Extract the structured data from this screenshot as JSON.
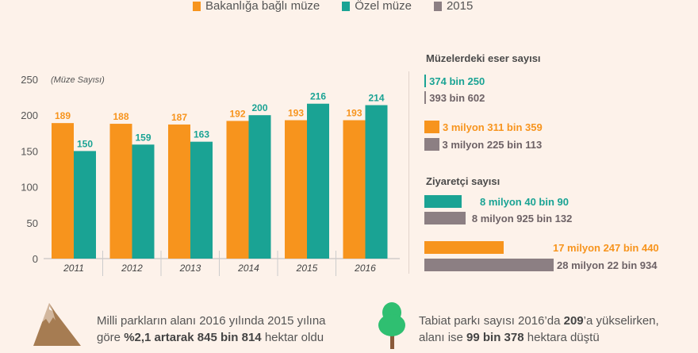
{
  "legend": [
    {
      "label": "Bakanlığa bağlı müze",
      "color": "#f7941d"
    },
    {
      "label": "Özel müze",
      "color": "#1aa394"
    },
    {
      "label": "2015",
      "color": "#8c7f83"
    }
  ],
  "chart_data": {
    "type": "bar",
    "ylabel": "(Müze Sayısı)",
    "categories": [
      "2011",
      "2012",
      "2013",
      "2014",
      "2015",
      "2016"
    ],
    "series": [
      {
        "name": "Bakanlığa bağlı müze",
        "color": "#f7941d",
        "values": [
          189,
          188,
          187,
          192,
          193,
          193
        ]
      },
      {
        "name": "Özel müze",
        "color": "#1aa394",
        "values": [
          150,
          159,
          163,
          200,
          216,
          214
        ]
      }
    ],
    "ylim": [
      0,
      250
    ],
    "yticks": [
      0,
      50,
      100,
      150,
      200,
      250
    ],
    "grid": false
  },
  "right": {
    "eser_title": "Müzelerdeki eser sayısı",
    "eser": [
      {
        "label": "374 bin 250",
        "value": 374250,
        "color": "#1aa394",
        "text_color": "#1aa394"
      },
      {
        "label": "393 bin 602",
        "value": 393602,
        "color": "#8c7f83",
        "text_color": "#6d6266"
      },
      {
        "label": "3 milyon 311 bin 359",
        "value": 3311359,
        "color": "#f7941d",
        "text_color": "#f7941d"
      },
      {
        "label": "3 milyon 225 bin 113",
        "value": 3225113,
        "color": "#8c7f83",
        "text_color": "#6d6266"
      }
    ],
    "ziyaretci_title": "Ziyaretçi sayısı",
    "ziyaretci": [
      {
        "label": "8 milyon 40 bin 90",
        "value": 8040090,
        "color": "#1aa394",
        "text_color": "#1aa394"
      },
      {
        "label": "8 milyon 925 bin 132",
        "value": 8925132,
        "color": "#8c7f83",
        "text_color": "#6d6266"
      },
      {
        "label": "17 milyon 247 bin 440",
        "value": 17247440,
        "color": "#f7941d",
        "text_color": "#f7941d"
      },
      {
        "label": "28 milyon 22 bin 934",
        "value": 28022934,
        "color": "#8c7f83",
        "text_color": "#6d6266"
      }
    ]
  },
  "footer": {
    "left": {
      "t1": "Milli parkların alanı 2016 yılında 2015 yılına",
      "t2a": "göre ",
      "t2b": "%2,1 artarak 845 bin 814",
      "t2c": " hektar oldu"
    },
    "right": {
      "t1a": "Tabiat parkı sayısı 2016’da ",
      "t1b": "209",
      "t1c": "’a yükselirken,",
      "t2a": "alanı ise ",
      "t2b": "99 bin 378",
      "t2c": " hektara düştü"
    }
  }
}
